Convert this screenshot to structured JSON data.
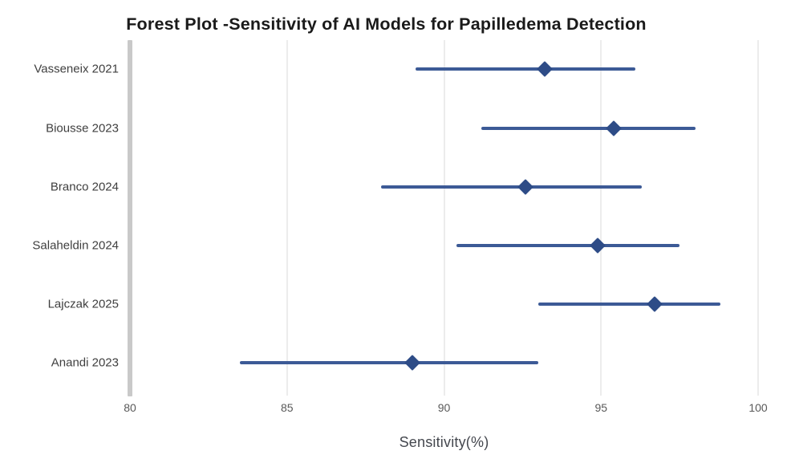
{
  "chart_data": {
    "type": "scatter",
    "variant": "forest-plot",
    "title": "Forest Plot -Sensitivity of AI Models for Papilledema Detection",
    "xlabel": "Sensitivity(%)",
    "xlim": [
      80,
      100
    ],
    "xticks": [
      80,
      85,
      90,
      95,
      100
    ],
    "grid": true,
    "legend": "none",
    "orientation": "horizontal-rows",
    "studies": [
      {
        "label": "Vasseneix 2021",
        "estimate": 93.2,
        "ci_low": 89.1,
        "ci_high": 96.1
      },
      {
        "label": "Biousse 2023",
        "estimate": 95.4,
        "ci_low": 91.2,
        "ci_high": 98.0
      },
      {
        "label": "Branco 2024",
        "estimate": 92.6,
        "ci_low": 88.0,
        "ci_high": 96.3
      },
      {
        "label": "Salaheldin 2024",
        "estimate": 94.9,
        "ci_low": 90.4,
        "ci_high": 97.5
      },
      {
        "label": "Lajczak 2025",
        "estimate": 96.7,
        "ci_low": 93.0,
        "ci_high": 98.8
      },
      {
        "label": "Anandi 2023",
        "estimate": 89.0,
        "ci_low": 83.5,
        "ci_high": 93.0
      }
    ],
    "colors": {
      "ci_line": "#3c5a96",
      "marker": "#2e4c87",
      "gridline": "#d9d9d9",
      "axis_bar": "#c9c9c9",
      "title_text": "#1a1a1a",
      "study_label_text": "#3f3f3f",
      "tick_label_text": "#595959",
      "axis_title_text": "#44474e",
      "background": "#ffffff"
    }
  }
}
